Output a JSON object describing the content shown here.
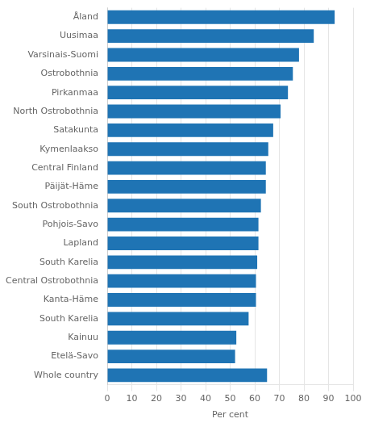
{
  "chart_data": {
    "type": "bar",
    "orientation": "horizontal",
    "categories": [
      "Åland",
      "Uusimaa",
      "Varsinais-Suomi",
      "Ostrobothnia",
      "Pirkanmaa",
      "North Ostrobothnia",
      "Satakunta",
      "Kymenlaakso",
      "Central Finland",
      "Päijät-Häme",
      "South Ostrobothnia",
      "Pohjois-Savo",
      "Lapland",
      "South Karelia",
      "Central Ostrobothnia",
      "Kanta-Häme",
      "South Karelia",
      "Kainuu",
      "Etelä-Savo",
      "Whole country"
    ],
    "values": [
      92.5,
      84.0,
      78.0,
      75.5,
      73.5,
      70.5,
      67.5,
      65.5,
      64.5,
      64.5,
      62.5,
      61.5,
      61.5,
      61.0,
      60.5,
      60.5,
      57.5,
      52.5,
      52.0,
      65.0
    ],
    "color": "#1F74B4",
    "xlabel": "Per cent",
    "xlim": [
      0,
      100
    ],
    "xticks": [
      0,
      10,
      20,
      30,
      40,
      50,
      60,
      70,
      80,
      90,
      100
    ],
    "grid": true
  }
}
